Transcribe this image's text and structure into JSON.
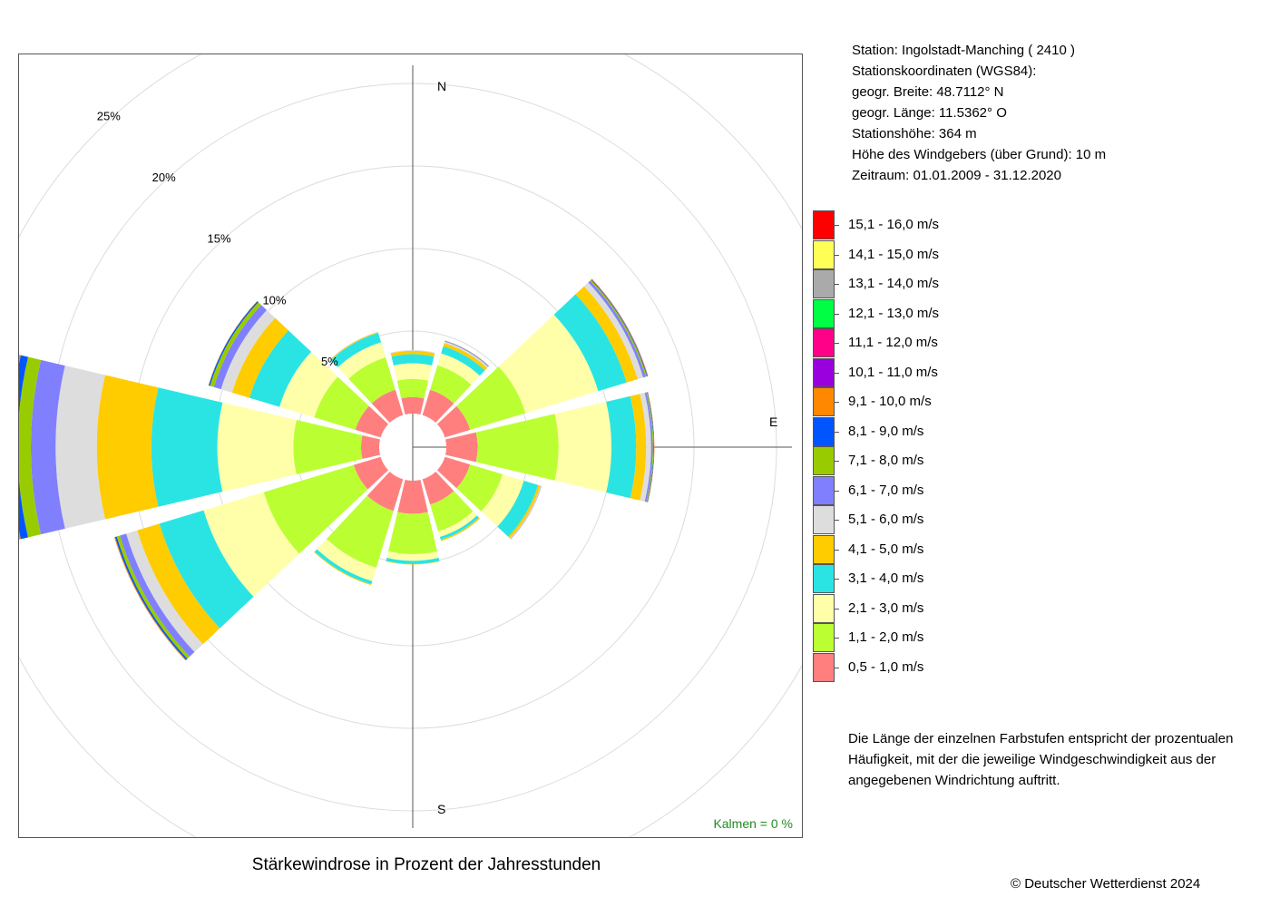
{
  "caption": "Stärkewindrose in Prozent der Jahresstunden",
  "copyright": "© Deutscher Wetterdienst  2024",
  "station_info": [
    "Station:  Ingolstadt-Manching  ( 2410 )",
    "Stationskoordinaten (WGS84):",
    "geogr. Breite: 48.7112° N",
    "geogr. Länge: 11.5362° O",
    "Stationshöhe: 364 m",
    "Höhe des Windgebers (über Grund): 10 m",
    "Zeitraum: 01.01.2009 - 31.12.2020"
  ],
  "note": "Die Länge der einzelnen Farbstufen entspricht der prozentualen Häufigkeit, mit der die jeweilige Windgeschwindigkeit aus der angegebenen Windrichtung auftritt.",
  "calm_label": "Kalmen  =  0 %",
  "legend": [
    {
      "label": "15,1 - 16,0 m/s",
      "color": "#ff0000"
    },
    {
      "label": "14,1 - 15,0 m/s",
      "color": "#ffff55"
    },
    {
      "label": "13,1 - 14,0 m/s",
      "color": "#aaaaaa"
    },
    {
      "label": "12,1 - 13,0 m/s",
      "color": "#00ff44"
    },
    {
      "label": "11,1 - 12,0 m/s",
      "color": "#ff0088"
    },
    {
      "label": "10,1 - 11,0 m/s",
      "color": "#9900dd"
    },
    {
      "label": "9,1 - 10,0 m/s",
      "color": "#ff8800"
    },
    {
      "label": "8,1 - 9,0 m/s",
      "color": "#0055ff"
    },
    {
      "label": "7,1 - 8,0 m/s",
      "color": "#99cc00"
    },
    {
      "label": "6,1 - 7,0 m/s",
      "color": "#8080ff"
    },
    {
      "label": "5,1 - 6,0 m/s",
      "color": "#dddddd"
    },
    {
      "label": "4,1 - 5,0 m/s",
      "color": "#ffcc00"
    },
    {
      "label": "3,1 - 4,0 m/s",
      "color": "#2ae4e4"
    },
    {
      "label": "2,1 - 3,0 m/s",
      "color": "#ffffaa"
    },
    {
      "label": "1,1 - 2,0 m/s",
      "color": "#bbff33"
    },
    {
      "label": "0,5 - 1,0 m/s",
      "color": "#ff7f7f"
    }
  ],
  "chart_data": {
    "type": "wind_rose",
    "unit": "%",
    "directions_deg": [
      0,
      30,
      60,
      90,
      120,
      150,
      180,
      210,
      240,
      270,
      300,
      330
    ],
    "compass_labels": {
      "N": "N",
      "E": "E",
      "S": "S"
    },
    "ring_labels": [
      "5%",
      "10%",
      "15%",
      "20%",
      "25%"
    ],
    "ring_values": [
      5,
      10,
      15,
      20,
      25
    ],
    "speed_classes": [
      "0,5 - 1,0 m/s",
      "1,1 - 2,0 m/s",
      "2,1 - 3,0 m/s",
      "3,1 - 4,0 m/s",
      "4,1 - 5,0 m/s",
      "5,1 - 6,0 m/s",
      "6,1 - 7,0 m/s",
      "7,1 - 8,0 m/s",
      "8,1 - 9,0 m/s",
      "9,1 - 10,0 m/s",
      "10,1 - 11,0 m/s",
      "11,1 - 12,0 m/s",
      "12,1 - 13,0 m/s",
      "13,1 - 14,0 m/s",
      "14,1 - 15,0 m/s",
      "15,1 - 16,0 m/s"
    ],
    "cumulative_percent": [
      [
        1.0,
        2.1,
        3.05,
        3.6,
        3.8,
        3.85,
        3.85,
        3.85,
        3.85,
        3.85,
        3.85,
        3.85,
        3.85,
        3.85,
        3.85,
        3.85
      ],
      [
        1.6,
        3.15,
        3.9,
        4.35,
        4.55,
        4.65,
        4.7,
        4.72,
        4.72,
        4.72,
        4.72,
        4.72,
        4.72,
        4.72,
        4.72,
        4.72
      ],
      [
        1.6,
        5.1,
        9.7,
        11.5,
        12.2,
        12.55,
        12.7,
        12.78,
        12.82,
        12.85,
        12.86,
        12.86,
        12.86,
        12.86,
        12.86,
        12.86
      ],
      [
        1.9,
        6.8,
        10.0,
        11.5,
        12.1,
        12.4,
        12.5,
        12.55,
        12.58,
        12.6,
        12.6,
        12.6,
        12.6,
        12.6,
        12.6,
        12.6
      ],
      [
        1.6,
        3.65,
        5.0,
        5.9,
        6.05,
        6.1,
        6.12,
        6.12,
        6.12,
        6.12,
        6.12,
        6.12,
        6.12,
        6.12,
        6.12,
        6.12
      ],
      [
        1.6,
        3.3,
        3.65,
        3.82,
        3.9,
        3.92,
        3.92,
        3.92,
        3.92,
        3.92,
        3.92,
        3.92,
        3.92,
        3.92,
        3.92,
        3.92
      ],
      [
        2.0,
        4.45,
        4.85,
        5.05,
        5.08,
        5.08,
        5.08,
        5.08,
        5.08,
        5.08,
        5.08,
        5.08,
        5.08,
        5.08,
        5.08,
        5.08
      ],
      [
        2.0,
        5.6,
        6.45,
        6.65,
        6.7,
        6.7,
        6.7,
        6.7,
        6.7,
        6.7,
        6.7,
        6.7,
        6.7,
        6.7,
        6.7,
        6.7
      ],
      [
        1.7,
        7.4,
        11.2,
        14.0,
        15.4,
        16.1,
        16.5,
        16.7,
        16.8,
        16.85,
        16.85,
        16.85,
        16.85,
        16.85,
        16.85,
        16.85
      ],
      [
        1.1,
        5.2,
        9.8,
        13.8,
        17.1,
        19.6,
        21.1,
        21.9,
        22.35,
        22.55,
        22.7,
        22.75,
        22.75,
        22.75,
        22.75,
        22.75
      ],
      [
        1.6,
        4.2,
        6.4,
        8.3,
        9.4,
        10.1,
        10.55,
        10.8,
        10.88,
        10.9,
        10.9,
        10.9,
        10.9,
        10.9,
        10.9,
        10.9
      ],
      [
        1.6,
        3.65,
        4.6,
        5.2,
        5.25,
        5.28,
        5.28,
        5.28,
        5.28,
        5.28,
        5.28,
        5.28,
        5.28,
        5.28,
        5.28,
        5.28
      ]
    ],
    "calm_percent": 0
  }
}
